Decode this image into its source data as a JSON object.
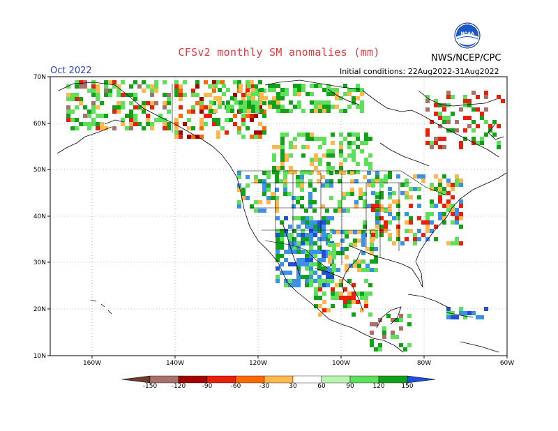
{
  "header": {
    "title": "CFSv2 monthly SM anomalies (mm)",
    "org": "NWS/NCEP/CPC",
    "period": "Oct 2022",
    "initial_conditions": "Initial conditions: 22Aug2022-31Aug2022",
    "logo_text": "NOAA"
  },
  "axes": {
    "lat_labels": [
      "70N",
      "60N",
      "50N",
      "40N",
      "30N",
      "20N",
      "10N"
    ],
    "lon_labels": [
      "160W",
      "140W",
      "120W",
      "100W",
      "80W",
      "60W"
    ]
  },
  "colorbar": {
    "labels": [
      "-150",
      "-120",
      "-90",
      "-60",
      "-30",
      "30",
      "60",
      "90",
      "120",
      "150"
    ],
    "colors": [
      "#6e3b2e",
      "#a8726a",
      "#a30000",
      "#e8200a",
      "#ff6a00",
      "#ffb84d",
      "#ffffff",
      "#b8f5b0",
      "#5de05a",
      "#12a21a",
      "#3a92e8",
      "#1f4fd8"
    ]
  },
  "chart_data": {
    "type": "heatmap",
    "title": "CFSv2 monthly SM anomalies (mm)",
    "lon_range": [
      -170,
      -60
    ],
    "lat_range": [
      10,
      70
    ],
    "units": "mm",
    "legend_placement": "bottom"
  }
}
